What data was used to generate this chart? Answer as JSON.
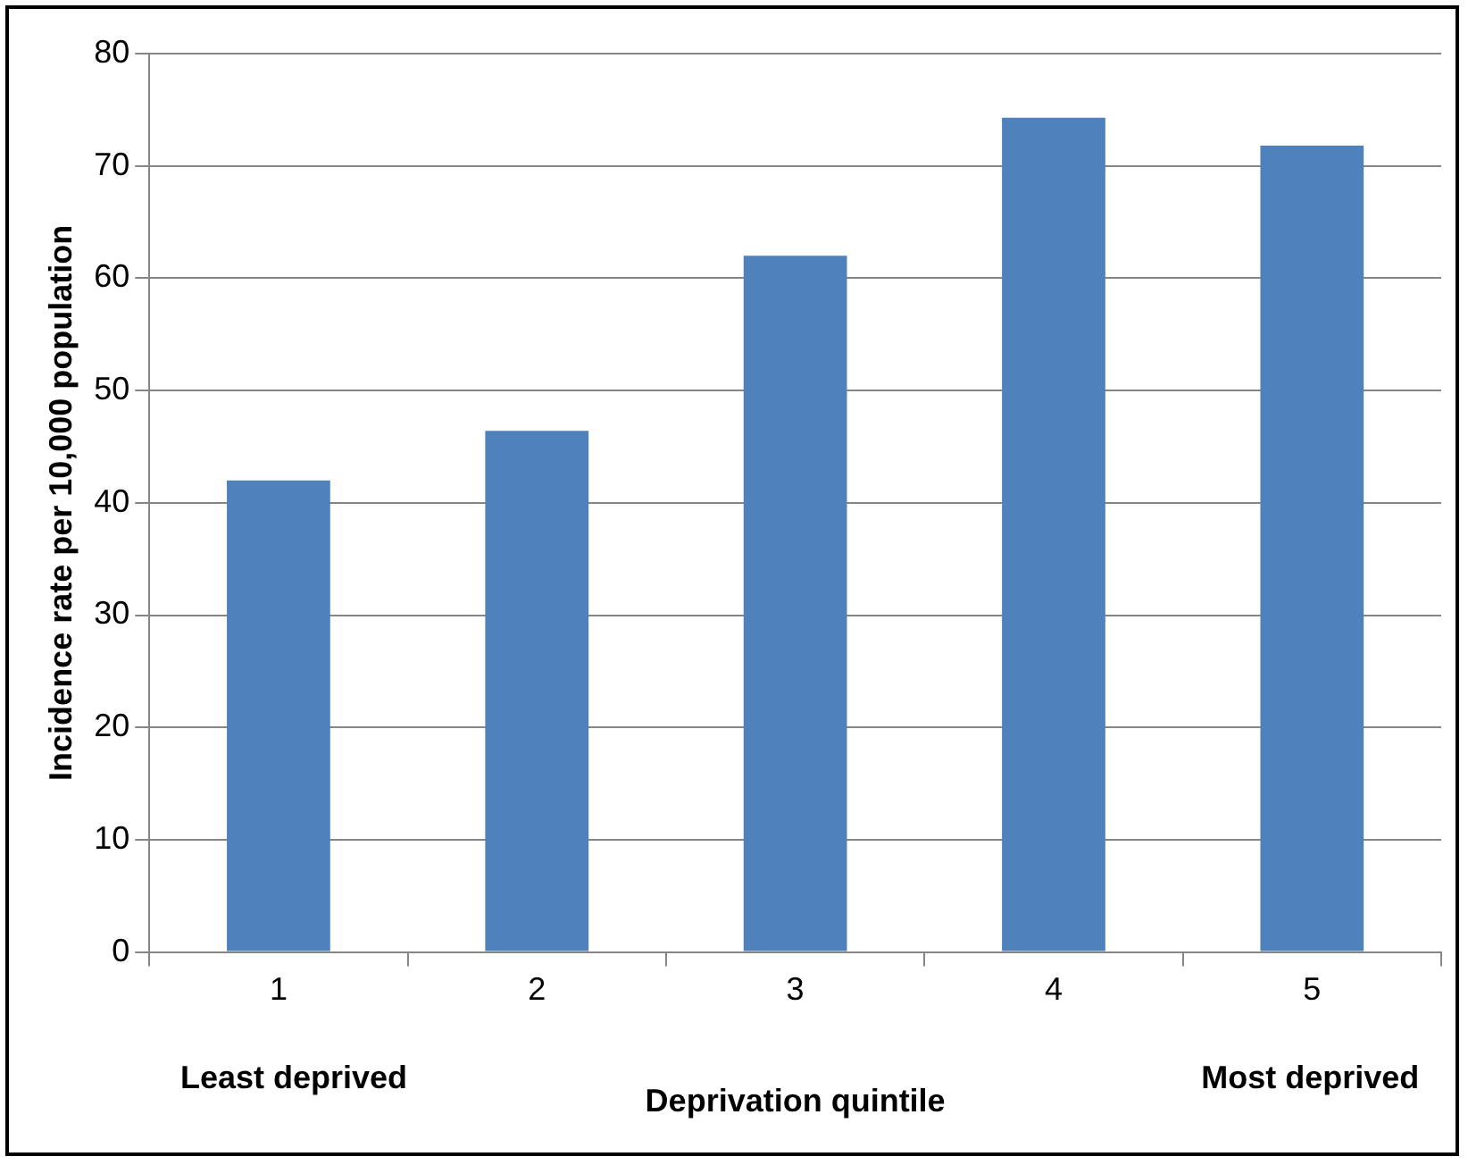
{
  "chart_data": {
    "type": "bar",
    "xlabel": "Deprivation quintile",
    "ylabel": "Incidence rate per 10,000 population",
    "categories": [
      "1",
      "2",
      "3",
      "4",
      "5"
    ],
    "values": [
      42,
      46.4,
      62,
      74.3,
      71.8
    ],
    "color": "#4f81bd",
    "ylim": [
      0,
      80
    ],
    "yticks": [
      0,
      10,
      20,
      30,
      40,
      50,
      60,
      70,
      80
    ],
    "grid": "y",
    "annotations": [
      "Least deprived",
      "Most deprived"
    ]
  }
}
